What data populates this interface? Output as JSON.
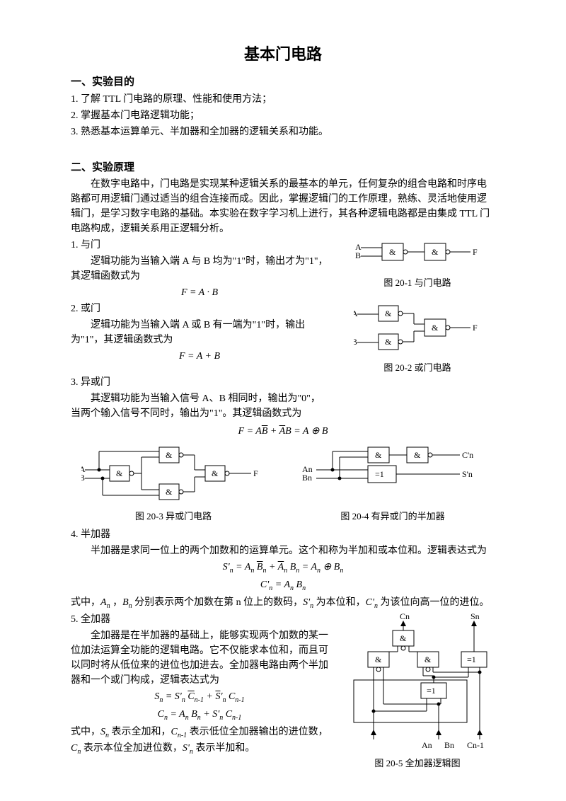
{
  "title": "基本门电路",
  "s1": {
    "head": "一、实验目的",
    "items": [
      "1. 了解 TTL 门电路的原理、性能和使用方法；",
      "2. 掌握基本门电路逻辑功能；",
      "3. 熟悉基本运算单元、半加器和全加器的逻辑关系和功能。"
    ]
  },
  "s2": {
    "head": "二、实验原理",
    "intro": "在数字电路中，门电路是实现某种逻辑关系的最基本的单元，任何复杂的组合电路和时序电路都可用逻辑门通过适当的组合连接而成。因此，掌握逻辑门的工作原理，熟练、灵活地使用逻辑门，是学习数字电路的基础。本实验在数字学习机上进行，其各种逻辑电路都是由集成 TTL 门电路构成，逻辑关系用正逻辑分析。"
  },
  "and": {
    "head": "1. 与门",
    "desc": "逻辑功能为当输入端 A 与 B 均为\"1\"时，输出才为\"1\"，其逻辑函数式为",
    "formula": "F = A · B",
    "caption": "图 20-1    与门电路"
  },
  "or": {
    "head": "2. 或门",
    "desc": "逻辑功能为当输入端 A 或 B 有一端为\"1\"时，输出为\"1\"，其逻辑函数式为",
    "formula": "F = A + B",
    "caption": "图 20-2    或门电路"
  },
  "xor": {
    "head": "3. 异或门",
    "desc": "其逻辑功能为当输入信号 A、B 相同时，输出为\"0\"，当两个输入信号不同时，输出为\"1\"。其逻辑函数式为",
    "formula_html": "F = A<span class='over'>B</span> + <span class='over'>A</span>B = A ⊕ B",
    "caption": "图 20-3    异或门电路"
  },
  "half": {
    "head": "4. 半加器",
    "caption_right": "图 20-4    有异或门的半加器",
    "desc": "半加器是求同一位上的两个加数和的运算单元。这个和称为半加和或本位和。逻辑表达式为",
    "formula1_html": "S'<sub>n</sub> = A<sub>n</sub> <span class='over'>B</span><sub>n</sub> + <span class='over'>A</span><sub>n</sub> B<sub>n</sub>  = A<sub>n</sub> ⊕ B<sub>n</sub>",
    "formula2_html": "C'<sub>n</sub> = A<sub>n</sub> B<sub>n</sub>",
    "tail_html": "式中，<i>A<sub>n</sub></i> ，<i>B<sub>n</sub></i> 分别表示两个加数在第 n 位上的数码，<i>S'<sub>n</sub></i> 为本位和，<i>C'<sub>n</sub></i> 为该位向高一位的进位。"
  },
  "full": {
    "head": "5. 全加器",
    "desc": "全加器是在半加器的基础上，能够实现两个加数的某一位加法运算全功能的逻辑电路。它不仅能求本位和，而且可以同时将从低位来的进位也加进去。全加器电路由两个半加器和一个或门构成，逻辑表达式为",
    "formula1_html": "S<sub>n</sub> = S'<sub>n</sub> <span class='over'>C</span><sub>n-1</sub> + <span class='over'>S</span>'<sub>n</sub> C<sub>n-1</sub>",
    "formula2_html": "C<sub>n</sub> = A<sub>n</sub> B<sub>n</sub> + S'<sub>n</sub> C<sub>n-1</sub>",
    "tail_html": "式中，<i>S<sub>n</sub></i> 表示全加和，<i>C<sub>n-1</sub></i> 表示低位全加器输出的进位数，<i>C<sub>n</sub></i> 表示本位全加进位数，<i>S'<sub>n</sub></i> 表示半加和。",
    "caption": "图 20-5    全加器逻辑图"
  },
  "svg": {
    "stroke": "#000000",
    "fill": "#ffffff",
    "gate_w": 30,
    "gate_h": 24,
    "stroke_width": 1
  }
}
